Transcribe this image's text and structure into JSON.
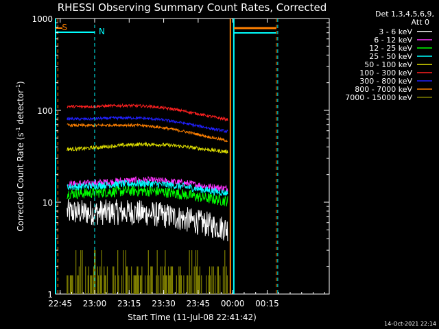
{
  "chart_data": {
    "type": "line",
    "title": "RHESSI Observing Summary Count Rates, Corrected",
    "xlabel": "Start Time (11-Jul-08 22:41:42)",
    "ylabel_main": "Corrected Count Rate (s",
    "ylabel_sup1": "-1",
    "ylabel_mid": " detector",
    "ylabel_sup2": "-1",
    "ylabel_end": ")",
    "y_scale": "log",
    "ylim": [
      1,
      1000
    ],
    "xlim_minutes": [
      -17,
      102
    ],
    "x_ticks": [
      {
        "label": "22:45",
        "minute": -15
      },
      {
        "label": "23:00",
        "minute": 0
      },
      {
        "label": "23:15",
        "minute": 15
      },
      {
        "label": "23:30",
        "minute": 30
      },
      {
        "label": "23:45",
        "minute": 45
      },
      {
        "label": "00:00",
        "minute": 60
      },
      {
        "label": "00:15",
        "minute": 75
      }
    ],
    "y_ticks": [
      {
        "label": "1",
        "value": 1
      },
      {
        "label": "10",
        "value": 10
      },
      {
        "label": "100",
        "value": 100
      },
      {
        "label": "1000",
        "value": 1000
      }
    ],
    "legend_header_1": "Det 1,3,4,5,6,9,",
    "legend_header_2": "Att 0",
    "legend_placement": "right",
    "series": [
      {
        "name": "3 - 6 keV",
        "color": "#ffffff",
        "start": 8.5,
        "end": 5.5,
        "noise": 0.28
      },
      {
        "name": "6 - 12 keV",
        "color": "#ff33ff",
        "start": 17,
        "end": 15,
        "noise": 0.08
      },
      {
        "name": "12 - 25 keV",
        "color": "#00ff00",
        "start": 13.5,
        "end": 11,
        "noise": 0.12
      },
      {
        "name": "25 - 50 keV",
        "color": "#00ffff",
        "start": 16,
        "end": 13.5,
        "noise": 0.08
      },
      {
        "name": "50 - 100 keV",
        "color": "#e0e000",
        "start": 41,
        "end": 38,
        "noise": 0.04
      },
      {
        "name": "100 - 300 keV",
        "color": "#ff2020",
        "start": 120,
        "end": 85,
        "noise": 0.03
      },
      {
        "name": "300 - 800 keV",
        "color": "#2020ff",
        "start": 88,
        "end": 63,
        "noise": 0.03
      },
      {
        "name": "800 - 7000 keV",
        "color": "#ff8000",
        "start": 75,
        "end": 50,
        "noise": 0.03
      },
      {
        "name": "7000 - 15000 keV",
        "color": "#808000",
        "start": 1.9,
        "end": 1.9,
        "noise": 0.25
      }
    ],
    "markers": [
      {
        "label": "S",
        "minute": -16,
        "color": "#ff8000"
      },
      {
        "label": "N",
        "minute": 0,
        "color": "#00ffff"
      }
    ],
    "timestamp": "14-Oct-2021 22:14"
  }
}
